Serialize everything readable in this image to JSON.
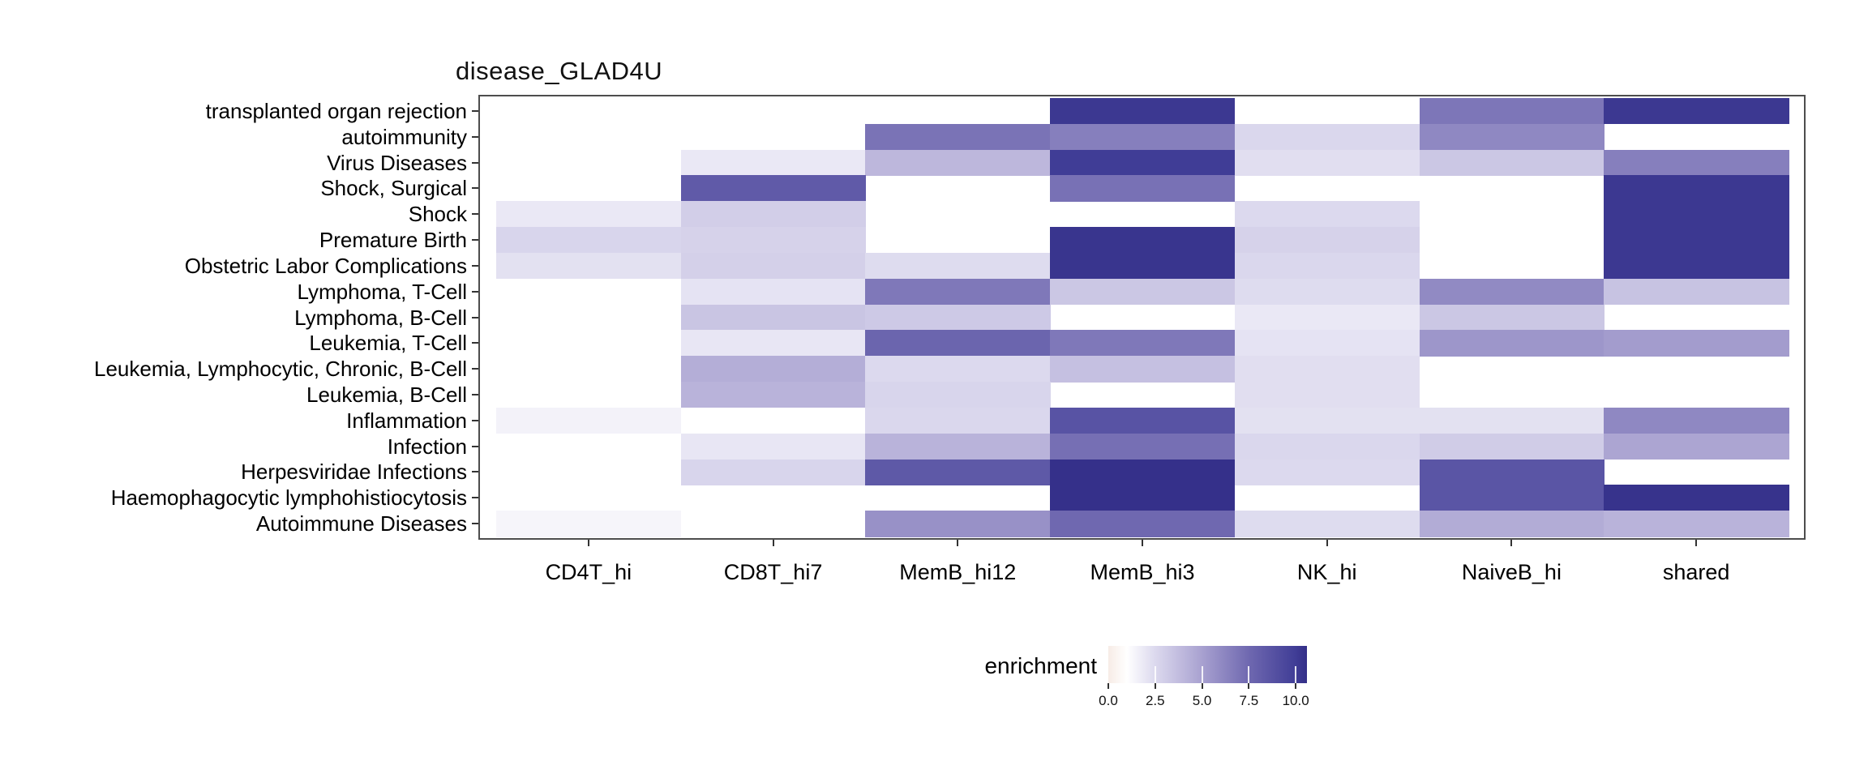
{
  "chart_data": {
    "type": "heatmap",
    "title": "disease_GLAD4U",
    "xlabel": "",
    "ylabel": "",
    "grid": false,
    "legend_position": "bottom",
    "columns": [
      "CD4T_hi",
      "CD8T_hi7",
      "MemB_hi12",
      "MemB_hi3",
      "NK_hi",
      "NaiveB_hi",
      "shared"
    ],
    "rows": [
      "transplanted organ rejection",
      "autoimmunity",
      "Virus Diseases",
      "Shock, Surgical",
      "Shock",
      "Premature Birth",
      "Obstetric Labor Complications",
      "Lymphoma, T-Cell",
      "Lymphoma, B-Cell",
      "Leukemia, T-Cell",
      "Leukemia, Lymphocytic, Chronic, B-Cell",
      "Leukemia, B-Cell",
      "Inflammation",
      "Infection",
      "Herpesviridae Infections",
      "Haemophagocytic lymphohistiocytosis",
      "Autoimmune Diseases"
    ],
    "values": [
      [
        null,
        null,
        null,
        10.2,
        null,
        6.9,
        10.2
      ],
      [
        null,
        null,
        7.0,
        6.5,
        2.6,
        6.1,
        null
      ],
      [
        null,
        1.9,
        4.0,
        10.0,
        2.3,
        3.3,
        6.5
      ],
      [
        null,
        8.3,
        null,
        7.1,
        null,
        null,
        10.2
      ],
      [
        1.9,
        3.0,
        null,
        null,
        2.5,
        null,
        10.2
      ],
      [
        2.7,
        2.8,
        null,
        10.3,
        2.8,
        null,
        10.2
      ],
      [
        2.2,
        2.9,
        2.4,
        10.3,
        2.6,
        null,
        10.2
      ],
      [
        null,
        2.1,
        6.8,
        3.3,
        2.4,
        6.0,
        3.5
      ],
      [
        null,
        3.4,
        3.2,
        null,
        1.9,
        3.3,
        null
      ],
      [
        null,
        2.0,
        7.7,
        6.8,
        2.1,
        5.5,
        5.2
      ],
      [
        null,
        4.4,
        2.5,
        3.6,
        2.3,
        null,
        null
      ],
      [
        null,
        4.2,
        2.7,
        null,
        2.3,
        null,
        null
      ],
      [
        1.5,
        null,
        2.6,
        8.7,
        2.2,
        2.2,
        6.1
      ],
      [
        null,
        2.0,
        4.2,
        7.2,
        2.6,
        3.1,
        4.8
      ],
      [
        null,
        2.7,
        8.4,
        10.5,
        2.5,
        8.6,
        null
      ],
      [
        null,
        null,
        null,
        10.5,
        null,
        8.6,
        10.4
      ],
      [
        1.4,
        null,
        5.7,
        7.5,
        2.4,
        4.5,
        4.2
      ]
    ],
    "legend": {
      "label": "enrichment",
      "tick_labels": [
        "0.0",
        "2.5",
        "5.0",
        "7.5",
        "10.0"
      ],
      "tick_values": [
        0,
        2.5,
        5,
        7.5,
        10
      ],
      "domain": [
        0,
        10.6
      ]
    },
    "color_scale": {
      "anchors": [
        [
          0,
          "#f7ece6"
        ],
        [
          1,
          "#ffffff"
        ],
        [
          2.5,
          "#dcd9ee"
        ],
        [
          5,
          "#a8a1d0"
        ],
        [
          7.5,
          "#6f68b0"
        ],
        [
          10,
          "#403d96"
        ],
        [
          10.6,
          "#332e87"
        ]
      ],
      "missing_color": "#ffffff"
    }
  }
}
